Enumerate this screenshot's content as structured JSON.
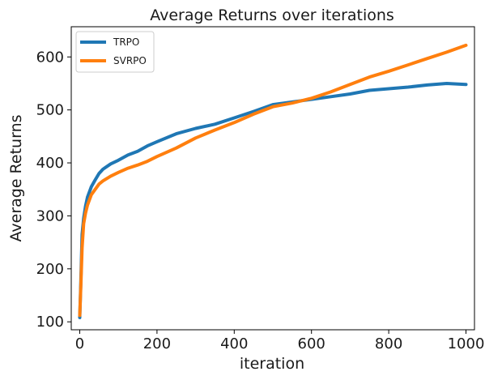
{
  "chart_data": {
    "type": "line",
    "title": "Average Returns  over iterations",
    "xlabel": "iteration",
    "ylabel": "Average Returns",
    "xlim": [
      -22,
      1022
    ],
    "ylim": [
      85,
      657
    ],
    "xticks": [
      0,
      200,
      400,
      600,
      800,
      1000
    ],
    "yticks": [
      100,
      200,
      300,
      400,
      500,
      600
    ],
    "grid": false,
    "legend_position": "top-left",
    "series": [
      {
        "name": "TRPO",
        "color": "#1f77b4",
        "x": [
          0,
          3,
          6,
          10,
          15,
          20,
          25,
          30,
          40,
          50,
          60,
          80,
          100,
          125,
          150,
          175,
          200,
          250,
          300,
          350,
          400,
          450,
          500,
          550,
          600,
          650,
          700,
          750,
          800,
          850,
          900,
          950,
          1000
        ],
        "y": [
          108,
          180,
          265,
          295,
          318,
          335,
          345,
          355,
          368,
          380,
          388,
          398,
          405,
          415,
          422,
          432,
          440,
          455,
          465,
          473,
          485,
          497,
          510,
          515,
          520,
          525,
          530,
          537,
          540,
          543,
          547,
          550,
          548
        ]
      },
      {
        "name": "SVRPO",
        "color": "#ff7f0e",
        "x": [
          0,
          3,
          6,
          10,
          15,
          20,
          25,
          30,
          40,
          50,
          60,
          80,
          100,
          125,
          150,
          175,
          200,
          250,
          300,
          350,
          400,
          450,
          500,
          550,
          600,
          650,
          700,
          750,
          800,
          850,
          900,
          950,
          1000
        ],
        "y": [
          112,
          170,
          240,
          285,
          305,
          320,
          330,
          340,
          350,
          360,
          366,
          375,
          382,
          390,
          396,
          403,
          412,
          428,
          447,
          462,
          476,
          492,
          506,
          513,
          522,
          534,
          548,
          562,
          573,
          585,
          597,
          609,
          622
        ]
      }
    ]
  }
}
